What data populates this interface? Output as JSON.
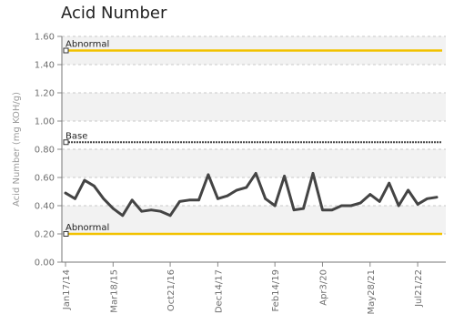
{
  "chart_data": {
    "type": "line",
    "title": "Acid Number",
    "xlabel": "",
    "ylabel": "Acid Number (mg KOH/g)",
    "ylim": [
      0,
      1.6
    ],
    "yticks": [
      "0.00",
      "0.20",
      "0.40",
      "0.60",
      "0.80",
      "1.00",
      "1.20",
      "1.40",
      "1.60"
    ],
    "xtick_labels": [
      "Jan17/14",
      "Mar18/15",
      "Oct21/16",
      "Dec14/17",
      "Feb14/19",
      "Apr3/20",
      "May28/21",
      "Jul21/22"
    ],
    "grid": "horizontal bands",
    "reference_lines": [
      {
        "name": "Abnormal",
        "value": 1.5,
        "color": "#f2c200"
      },
      {
        "name": "Base",
        "value": 0.85,
        "color": "#444444"
      },
      {
        "name": "Abnormal",
        "value": 0.2,
        "color": "#f2c200"
      }
    ],
    "series": [
      {
        "color": "#444444",
        "values": [
          0.49,
          0.45,
          0.58,
          0.54,
          0.45,
          0.38,
          0.33,
          0.44,
          0.36,
          0.37,
          0.36,
          0.33,
          0.43,
          0.44,
          0.44,
          0.62,
          0.45,
          0.47,
          0.51,
          0.53,
          0.63,
          0.45,
          0.4,
          0.61,
          0.37,
          0.38,
          0.63,
          0.37,
          0.37,
          0.4,
          0.4,
          0.42,
          0.48,
          0.43,
          0.56,
          0.4,
          0.51,
          0.41,
          0.45,
          0.46
        ]
      }
    ]
  }
}
